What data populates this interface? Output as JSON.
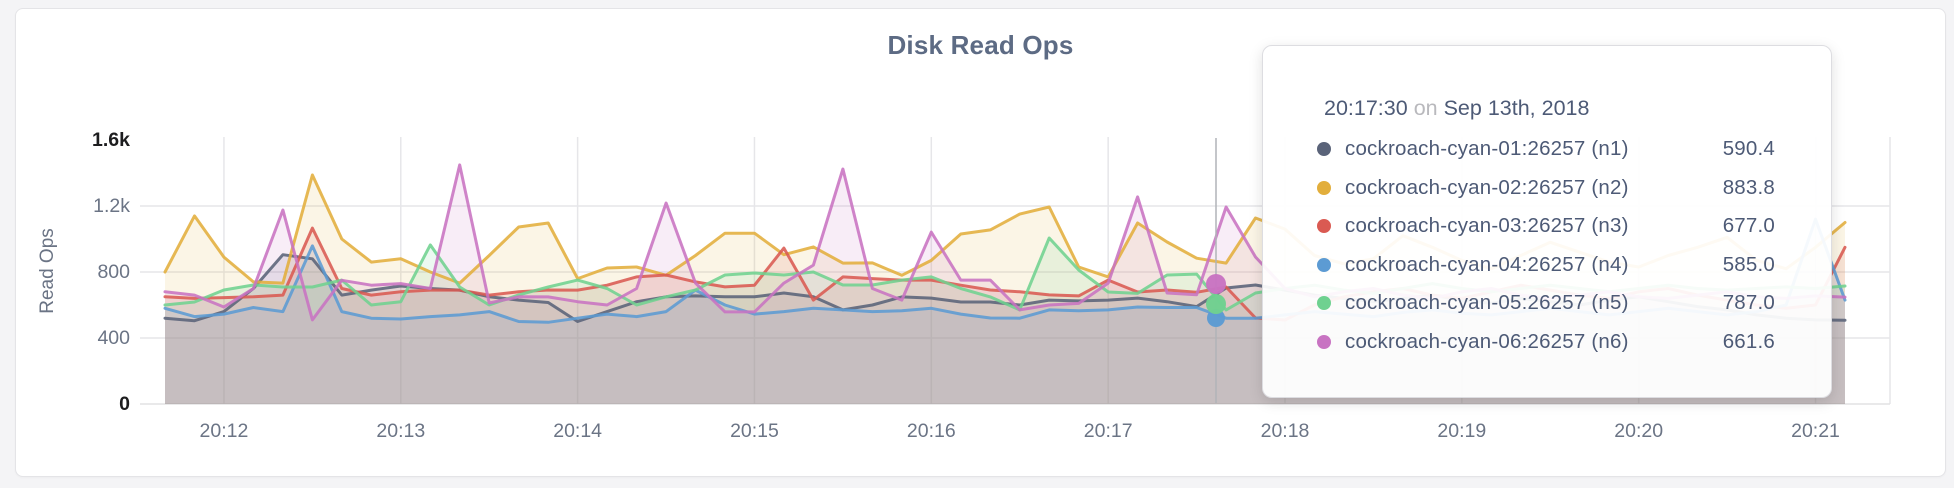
{
  "title": "Disk Read Ops",
  "chart_data": {
    "type": "area",
    "title": "Disk Read Ops",
    "xlabel": "",
    "ylabel": "Read Ops",
    "x_start_time": "20:11:40",
    "x_interval_seconds": 10,
    "x_ticks": [
      "20:12",
      "20:13",
      "20:14",
      "20:15",
      "20:16",
      "20:17",
      "20:18",
      "20:19",
      "20:20",
      "20:21"
    ],
    "y_ticks": [
      {
        "label": "0",
        "value": 0,
        "emphasis": true
      },
      {
        "label": "400",
        "value": 400,
        "emphasis": false
      },
      {
        "label": "800",
        "value": 800,
        "emphasis": false
      },
      {
        "label": "1.2k",
        "value": 1200,
        "emphasis": false
      },
      {
        "label": "1.6k",
        "value": 1600,
        "emphasis": true
      }
    ],
    "ylim": [
      0,
      1600
    ],
    "grid": true,
    "legend_position": "tooltip",
    "series": [
      {
        "name": "cockroach-cyan-01:26257 (n1)",
        "color": "#5a6379",
        "values": [
          520,
          505,
          560,
          700,
          905,
          880,
          660,
          690,
          715,
          700,
          690,
          650,
          630,
          615,
          500,
          560,
          620,
          650,
          655,
          650,
          650,
          673,
          650,
          570,
          600,
          649,
          642,
          618,
          618,
          600,
          630,
          625,
          630,
          642,
          620,
          590.4,
          703,
          721,
          690,
          660,
          640,
          620,
          640,
          660,
          630,
          610,
          640,
          620,
          600,
          630,
          650,
          620,
          590,
          570,
          540,
          520,
          510,
          508
        ]
      },
      {
        "name": "cockroach-cyan-02:26257 (n2)",
        "color": "#e2ae3c",
        "values": [
          800,
          1140,
          890,
          740,
          733,
          1388,
          1000,
          860,
          880,
          800,
          733,
          900,
          1073,
          1097,
          760,
          824,
          830,
          780,
          900,
          1035,
          1035,
          905,
          952,
          854,
          855,
          780,
          870,
          1030,
          1055,
          1151,
          1194,
          830,
          770,
          1097,
          982,
          883.8,
          854,
          1127,
          1060,
          900,
          850,
          880,
          1020,
          950,
          870,
          820,
          900,
          980,
          920,
          860,
          830,
          900,
          950,
          1010,
          870,
          820,
          950,
          1100
        ]
      },
      {
        "name": "cockroach-cyan-03:26257 (n3)",
        "color": "#da5a52",
        "values": [
          650,
          640,
          645,
          650,
          660,
          1066,
          700,
          660,
          680,
          690,
          690,
          660,
          680,
          691,
          690,
          720,
          770,
          782,
          740,
          710,
          720,
          945,
          630,
          770,
          760,
          751,
          751,
          720,
          691,
          680,
          661,
          655,
          751,
          679,
          691,
          677,
          709,
          521,
          509,
          600,
          650,
          680,
          700,
          660,
          640,
          680,
          720,
          690,
          660,
          640,
          680,
          700,
          660,
          630,
          600,
          580,
          600,
          950
        ]
      },
      {
        "name": "cockroach-cyan-04:26257 (n4)",
        "color": "#5c9bd3",
        "values": [
          580,
          530,
          545,
          585,
          560,
          958,
          560,
          520,
          515,
          530,
          540,
          560,
          500,
          495,
          520,
          545,
          530,
          560,
          690,
          600,
          545,
          560,
          580,
          570,
          560,
          565,
          580,
          545,
          521,
          520,
          570,
          565,
          570,
          588,
          585,
          585,
          520,
          520,
          540,
          560,
          545,
          530,
          555,
          570,
          550,
          540,
          560,
          580,
          560,
          540,
          560,
          580,
          560,
          540,
          560,
          600,
          1120,
          630
        ]
      },
      {
        "name": "cockroach-cyan-05:26257 (n5)",
        "color": "#6fd190",
        "values": [
          600,
          618,
          691,
          721,
          709,
          709,
          751,
          600,
          620,
          964,
          709,
          600,
          661,
          709,
          751,
          700,
          600,
          650,
          691,
          782,
          794,
          782,
          800,
          721,
          721,
          751,
          770,
          700,
          649,
          570,
          1006,
          812,
          679,
          670,
          782,
          787,
          570,
          673,
          700,
          720,
          690,
          670,
          700,
          730,
          700,
          680,
          700,
          720,
          700,
          680,
          700,
          720,
          700,
          690,
          700,
          710,
          700,
          715
        ]
      },
      {
        "name": "cockroach-cyan-06:26257 (n6)",
        "color": "#c873c2",
        "values": [
          680,
          660,
          588,
          700,
          1176,
          510,
          750,
          720,
          730,
          700,
          1449,
          612,
          650,
          649,
          620,
          600,
          700,
          1218,
          733,
          558,
          558,
          733,
          842,
          1424,
          700,
          630,
          1042,
          751,
          751,
          570,
          600,
          610,
          733,
          1255,
          673,
          661.6,
          1194,
          891,
          700,
          650,
          680,
          700,
          660,
          640,
          680,
          700,
          660,
          640,
          660,
          680,
          650,
          640,
          660,
          680,
          650,
          640,
          655,
          648
        ]
      }
    ]
  },
  "tooltip": {
    "time": "20:17:30",
    "connector": "on",
    "date": "Sep 13th, 2018",
    "rows": [
      {
        "label": "cockroach-cyan-01:26257 (n1)",
        "value": "590.4",
        "color": "#5a6379"
      },
      {
        "label": "cockroach-cyan-02:26257 (n2)",
        "value": "883.8",
        "color": "#e2ae3c"
      },
      {
        "label": "cockroach-cyan-03:26257 (n3)",
        "value": "677.0",
        "color": "#da5a52"
      },
      {
        "label": "cockroach-cyan-04:26257 (n4)",
        "value": "585.0",
        "color": "#5c9bd3"
      },
      {
        "label": "cockroach-cyan-05:26257 (n5)",
        "value": "787.0",
        "color": "#6fd190"
      },
      {
        "label": "cockroach-cyan-06:26257 (n6)",
        "value": "661.6",
        "color": "#c873c2"
      }
    ]
  },
  "hover": {
    "time": "20:17:30",
    "dots": [
      {
        "series": "cockroach-cyan-04:26257 (n4)",
        "color": "#5c9bd3"
      },
      {
        "series": "cockroach-cyan-05:26257 (n5)",
        "color": "#6fd190"
      },
      {
        "series": "cockroach-cyan-06:26257 (n6)",
        "color": "#c873c2"
      }
    ]
  },
  "colors": {
    "grid": "#e6e6e9",
    "axis_text": "#6b7485",
    "axis_text_emphasis": "#1d1d1f",
    "title_text": "#5d6b84",
    "tooltip_text": "#4d5a76",
    "hover_line": "#b0b3b8",
    "card_background": "#ffffff",
    "page_background": "#f4f4f6"
  }
}
